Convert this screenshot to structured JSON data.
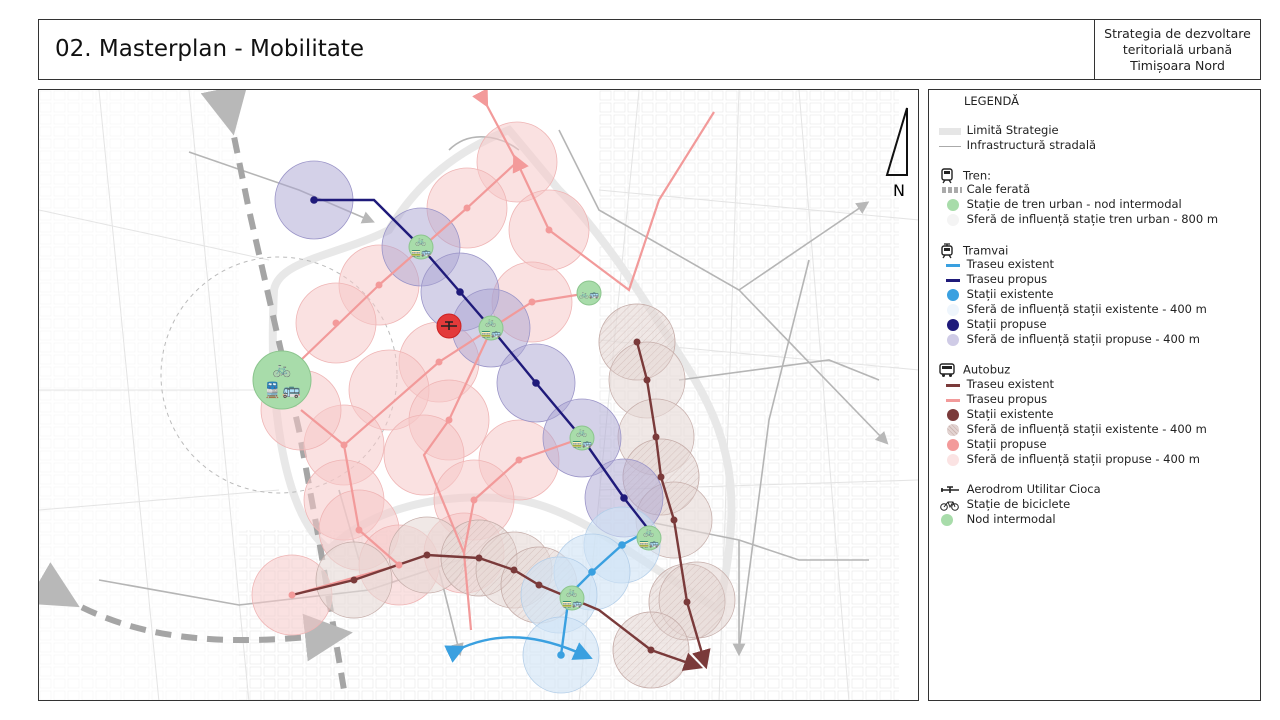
{
  "header": {
    "title": "02. Masterplan - Mobilitate",
    "right_lines": [
      "Strategia de dezvoltare",
      "teritorială urbană",
      "Timișoara Nord"
    ]
  },
  "map": {
    "north_label": "N",
    "colors": {
      "train_sphere": "#d9d9d9",
      "node": "#a8dcaa",
      "tram_existing": "#3aa0e0",
      "tram_proposed": "#1f1a7a",
      "tram_proposed_sphere": "#b9b4d8",
      "tram_existing_sphere": "#cfe3f5",
      "bus_existing": "#7a3a3a",
      "bus_existing_sphere": "#e3d4d2",
      "bus_proposed": "#f08c8c",
      "bus_proposed_sphere": "#f6cccc",
      "railway": "#a0a0a0",
      "aerodrome": "#e33a3a"
    }
  },
  "legend": {
    "title": "LEGENDĂ",
    "general": [
      {
        "label": "Limită Strategie",
        "symbol": "band-grey"
      },
      {
        "label": "Infrastructură stradală",
        "symbol": "line-grey"
      }
    ],
    "sections": [
      {
        "name": "Tren:",
        "icon": "train-icon",
        "items": [
          {
            "label": "Cale ferată",
            "symbol": "dash-grey"
          },
          {
            "label": "Stație de tren urban - nod intermodal",
            "symbol": "dot-green"
          },
          {
            "label": "Sferă de influență stație tren urban - 800 m",
            "symbol": "dot-faint"
          }
        ]
      },
      {
        "name": "Tramvai",
        "icon": "tram-icon",
        "items": [
          {
            "label": "Traseu existent",
            "symbol": "line-lightblue"
          },
          {
            "label": "Traseu propus",
            "symbol": "line-navy"
          },
          {
            "label": "Stații existente",
            "symbol": "dot-blue"
          },
          {
            "label": "Sferă de influență stații existente - 400 m",
            "symbol": "dot-faint-blue"
          },
          {
            "label": "Stații propuse",
            "symbol": "dot-navy"
          },
          {
            "label": "Sferă de influență stații propuse - 400 m",
            "symbol": "dot-lavender"
          }
        ]
      },
      {
        "name": "Autobuz",
        "icon": "bus-icon",
        "items": [
          {
            "label": "Traseu existent",
            "symbol": "line-maroon"
          },
          {
            "label": "Traseu propus",
            "symbol": "line-pink"
          },
          {
            "label": "Stații existente",
            "symbol": "dot-maroon"
          },
          {
            "label": "Sferă de influență stații existente - 400 m",
            "symbol": "dot-hatch"
          },
          {
            "label": "Stații propuse",
            "symbol": "dot-pink"
          },
          {
            "label": "Sferă de influență stații propuse - 400 m",
            "symbol": "dot-pale-pink"
          }
        ]
      }
    ],
    "extras": [
      {
        "label": "Aerodrom Utilitar Cioca",
        "symbol": "plane-icon"
      },
      {
        "label": "Stație de biciclete",
        "symbol": "bicycle-icon"
      },
      {
        "label": "Nod intermodal",
        "symbol": "dot-green"
      }
    ]
  }
}
